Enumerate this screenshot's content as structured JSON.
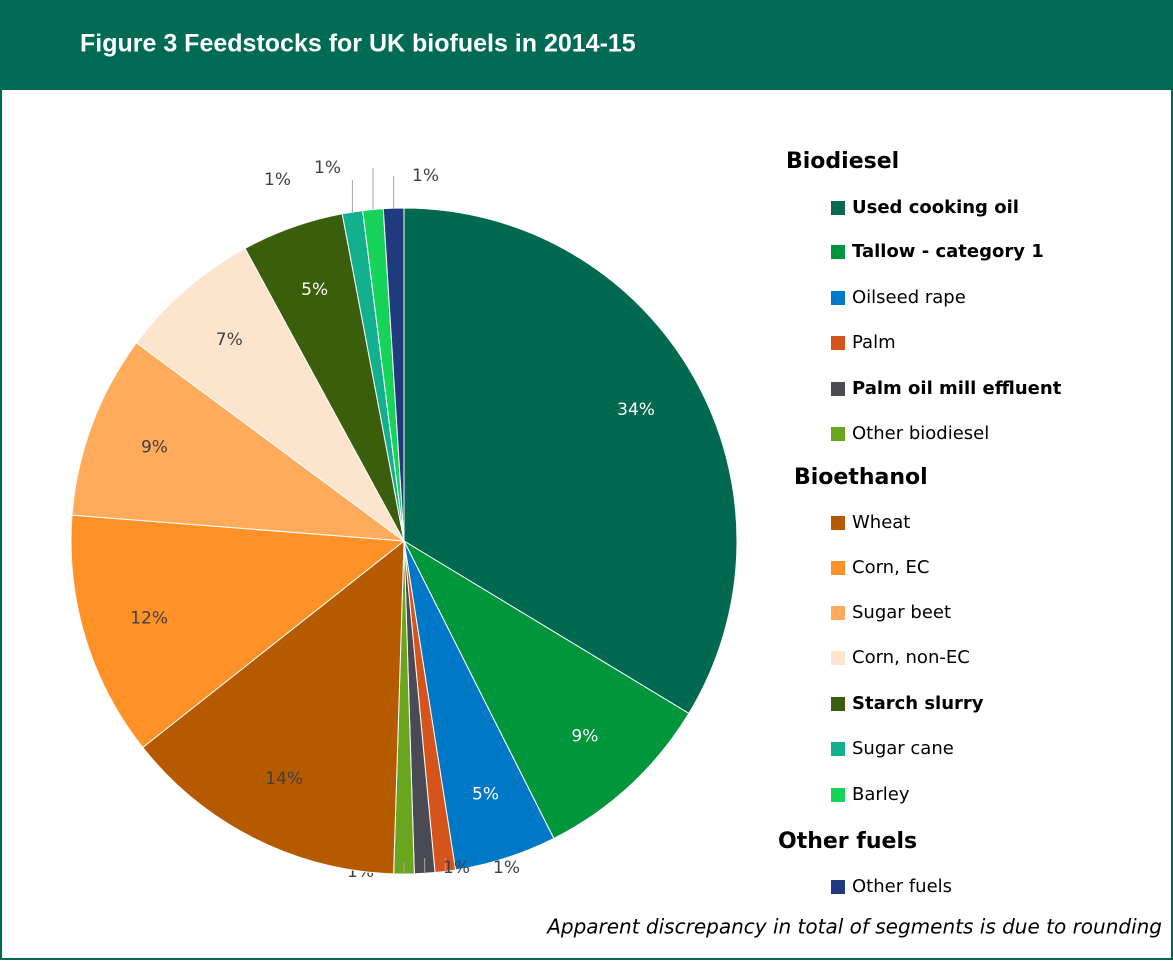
{
  "chart_data": {
    "type": "pie",
    "title": "Figure 3 Feedstocks for UK biofuels in 2014-15",
    "categories": [
      "Used cooking oil",
      "Tallow - category 1",
      "Oilseed rape",
      "Palm",
      "Palm oil mill effluent",
      "Other biodiesel",
      "Wheat",
      "Corn, EC",
      "Sugar beet",
      "Corn, non-EC",
      "Starch slurry",
      "Sugar cane",
      "Barley",
      "Other fuels"
    ],
    "values": [
      34,
      9,
      5,
      1,
      1,
      1,
      14,
      12,
      9,
      7,
      5,
      1,
      1,
      1
    ],
    "value_labels": [
      "34%",
      "9%",
      "5%",
      "1%",
      "1%",
      "1%",
      "14%",
      "12%",
      "9%",
      "7%",
      "5%",
      "1%",
      "1%",
      "1%"
    ],
    "colors": [
      "#00694f",
      "#00963c",
      "#0078c8",
      "#d4541c",
      "#4a4a55",
      "#6aa51e",
      "#b65a00",
      "#ff9126",
      "#ffab5b",
      "#fde4cc",
      "#3b5e0d",
      "#12b08f",
      "#16d45a",
      "#1f3b7d"
    ],
    "bold_labels": [
      true,
      true,
      false,
      false,
      true,
      false,
      false,
      false,
      false,
      false,
      true,
      false,
      false,
      false
    ],
    "legend_groups": [
      "Biodiesel",
      "Bioethanol",
      "Other fuels"
    ],
    "annotation": "Apparent discrepancy in total of segments is due to rounding"
  }
}
